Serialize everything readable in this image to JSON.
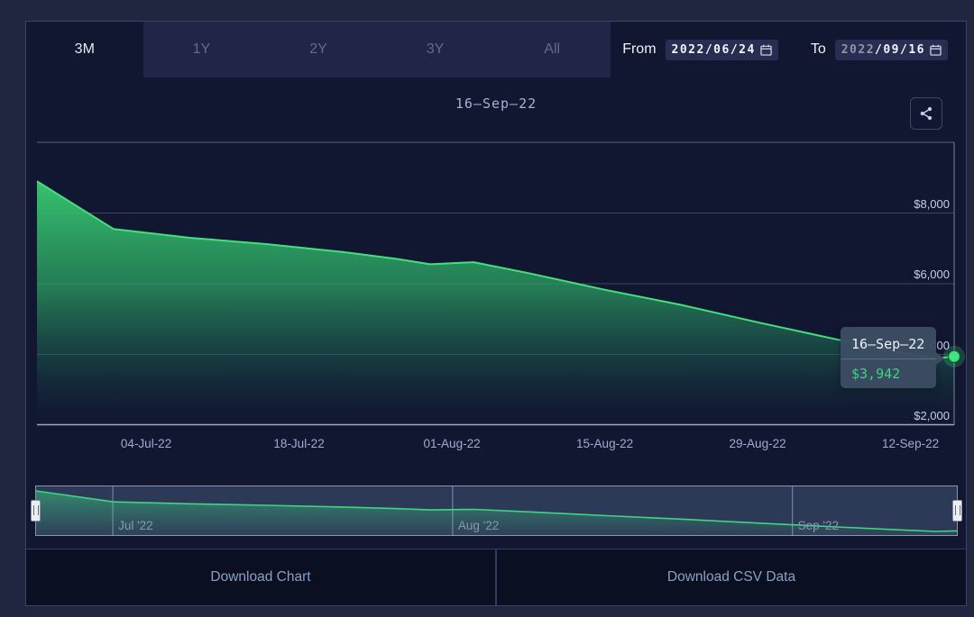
{
  "toolbar": {
    "tabs": [
      {
        "label": "3M",
        "active": true
      },
      {
        "label": "1Y",
        "active": false
      },
      {
        "label": "2Y",
        "active": false
      },
      {
        "label": "3Y",
        "active": false
      },
      {
        "label": "All",
        "active": false
      }
    ],
    "from_label": "From",
    "from_value": "2022/06/24",
    "to_label": "To",
    "to_value_year": "2022",
    "to_value_rest": "/09/16"
  },
  "icons": {
    "share": "share-nodes",
    "calendar": "calendar"
  },
  "chart_data": {
    "type": "area",
    "title": "16–Sep–22",
    "xlabel": "",
    "ylabel": "",
    "ylim": [
      2000,
      10000
    ],
    "x_range_days": 84,
    "grid_values": [
      10000,
      8000,
      6000,
      4000
    ],
    "yticks": [
      {
        "value": 8000,
        "label": "$8,000"
      },
      {
        "value": 6000,
        "label": "$6,000"
      },
      {
        "value": 4000,
        "label": "$4,000"
      },
      {
        "value": 2000,
        "label": "$2,000"
      }
    ],
    "xticks": [
      {
        "t": 10,
        "label": "04-Jul-22"
      },
      {
        "t": 24,
        "label": "18-Jul-22"
      },
      {
        "t": 38,
        "label": "01-Aug-22"
      },
      {
        "t": 52,
        "label": "15-Aug-22"
      },
      {
        "t": 66,
        "label": "29-Aug-22"
      },
      {
        "t": 80,
        "label": "12-Sep-22"
      }
    ],
    "navigator_months": [
      {
        "t": 7,
        "label": "Jul '22"
      },
      {
        "t": 38,
        "label": "Aug '22"
      },
      {
        "t": 69,
        "label": "Sep '22"
      }
    ],
    "series": [
      {
        "t": 0,
        "date": "24-Jun-22",
        "value": 8900
      },
      {
        "t": 7,
        "date": "01-Jul-22",
        "value": 7550
      },
      {
        "t": 14,
        "date": "08-Jul-22",
        "value": 7300
      },
      {
        "t": 21,
        "date": "15-Jul-22",
        "value": 7120
      },
      {
        "t": 28,
        "date": "22-Jul-22",
        "value": 6900
      },
      {
        "t": 33,
        "date": "27-Jul-22",
        "value": 6700
      },
      {
        "t": 36,
        "date": "30-Jul-22",
        "value": 6550
      },
      {
        "t": 40,
        "date": "03-Aug-22",
        "value": 6610
      },
      {
        "t": 45,
        "date": "08-Aug-22",
        "value": 6300
      },
      {
        "t": 52,
        "date": "15-Aug-22",
        "value": 5830
      },
      {
        "t": 59,
        "date": "22-Aug-22",
        "value": 5400
      },
      {
        "t": 66,
        "date": "29-Aug-22",
        "value": 4910
      },
      {
        "t": 73,
        "date": "05-Sep-22",
        "value": 4440
      },
      {
        "t": 80,
        "date": "12-Sep-22",
        "value": 4000
      },
      {
        "t": 82,
        "date": "14-Sep-22",
        "value": 3880
      },
      {
        "t": 84,
        "date": "16-Sep-22",
        "value": 3942
      }
    ],
    "tooltip": {
      "date": "16–Sep–22",
      "value_label": "$3,942",
      "value": 3942
    },
    "legend": "none",
    "grid": "horizontal"
  },
  "footer": {
    "download_chart": "Download Chart",
    "download_csv": "Download CSV Data"
  },
  "colors": {
    "background": "#121731",
    "panel": "#1f2647",
    "line_green": "#45e07e",
    "dot_green": "#3fe57d",
    "tooltip_bg": "#3c4c62",
    "tooltip_value": "#3cd57e",
    "axis_label": "#c6d0e2",
    "navigator_bg": "#2d3a57"
  }
}
